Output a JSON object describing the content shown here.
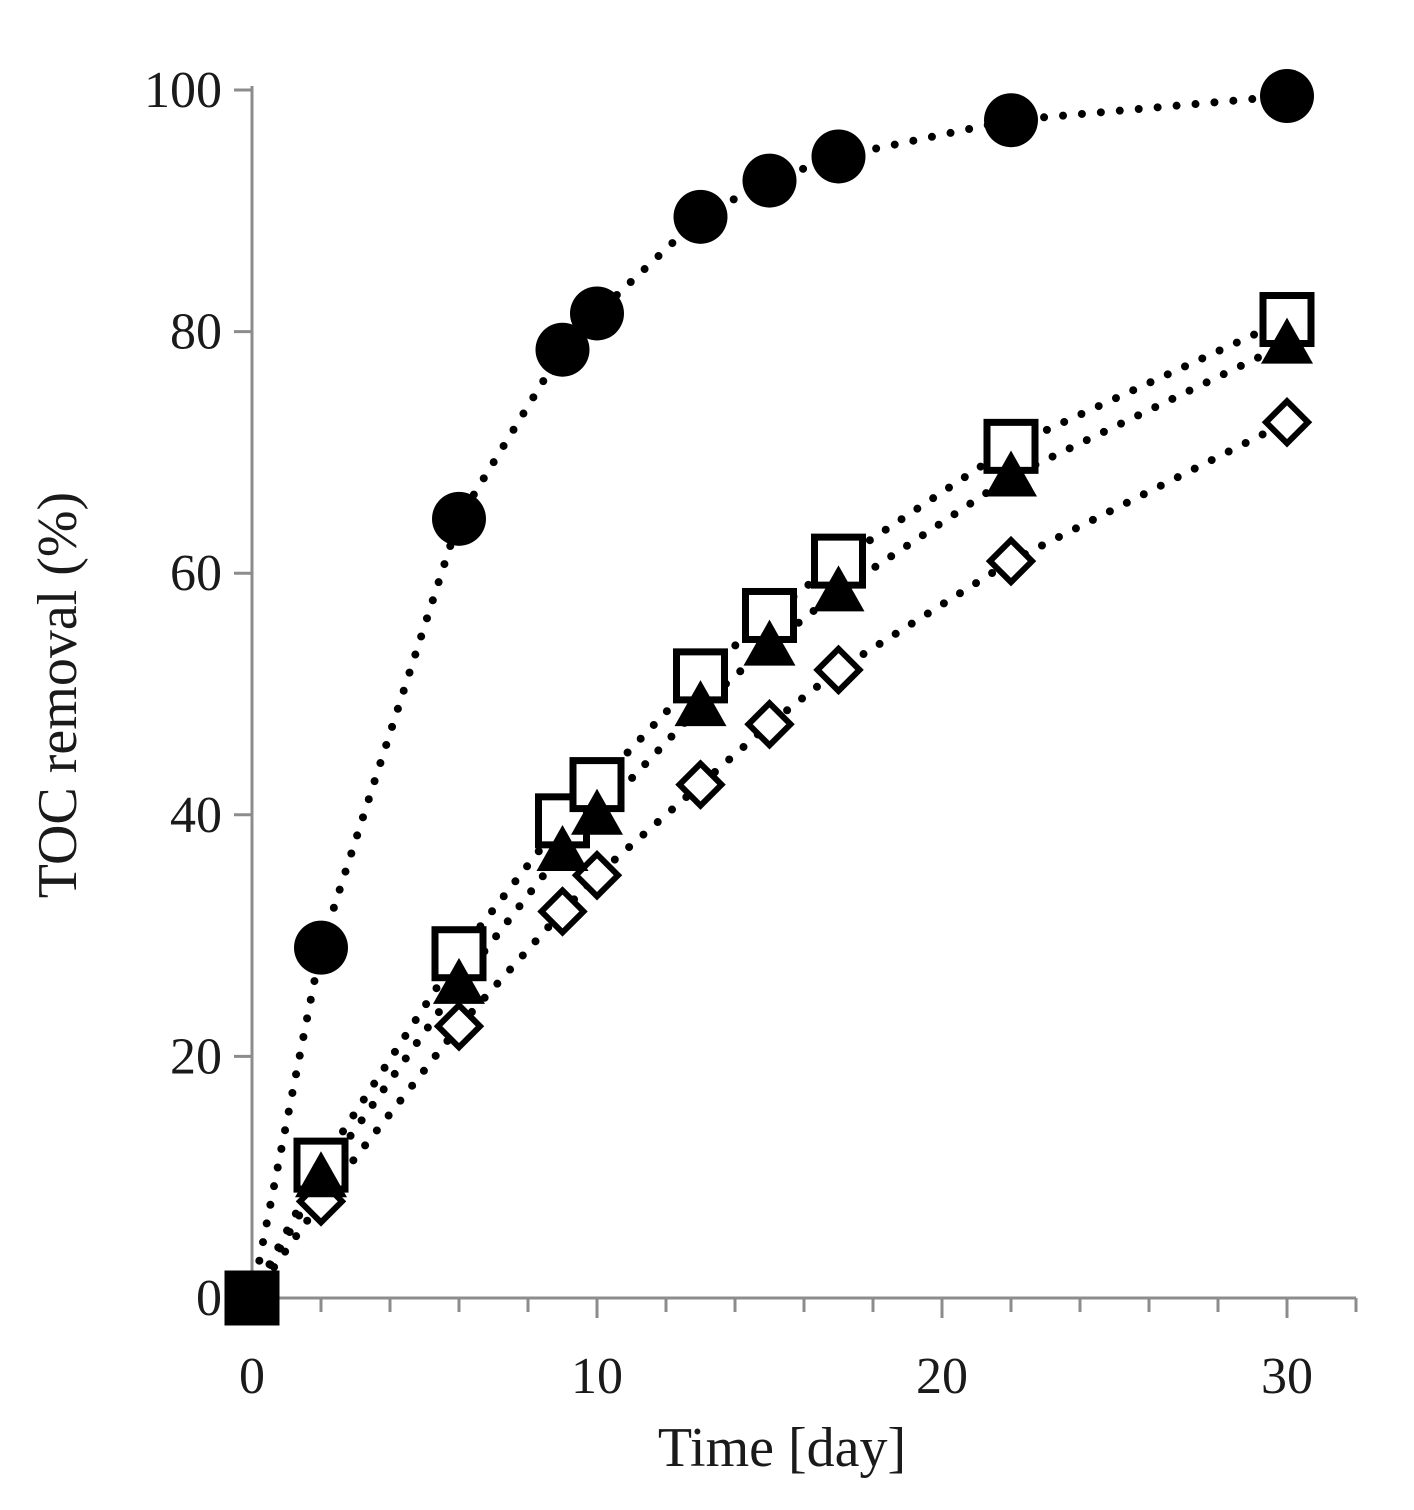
{
  "chart_data": {
    "type": "scatter",
    "title": "",
    "xlabel": "Time [day]",
    "ylabel": "TOC removal (%)",
    "xlim": [
      0,
      32
    ],
    "ylim": [
      0,
      100
    ],
    "x_major_ticks": [
      0,
      10,
      20,
      30
    ],
    "x_major_tick_labels": [
      "0",
      "10",
      "20",
      "30"
    ],
    "x_minor_step": 2,
    "y_ticks": [
      0,
      20,
      40,
      60,
      80,
      100
    ],
    "y_tick_labels": [
      "0",
      "20",
      "40",
      "60",
      "80",
      "100"
    ],
    "grid": false,
    "line_style": "dotted",
    "colors": {
      "axis": "#8c8c8c",
      "marker": "#000000",
      "text": "#1a1a1a"
    },
    "series": [
      {
        "name": "filled-circle",
        "marker": "circle-filled",
        "x": [
          0,
          2,
          6,
          9,
          10,
          13,
          15,
          17,
          22,
          30
        ],
        "y": [
          0,
          29,
          64.5,
          78.5,
          81.5,
          89.5,
          92.5,
          94.5,
          97.5,
          99.5
        ]
      },
      {
        "name": "open-square",
        "marker": "square-open",
        "x": [
          0,
          2,
          6,
          9,
          10,
          13,
          15,
          17,
          22,
          30
        ],
        "y": [
          0,
          11,
          28.5,
          39.5,
          42.5,
          51.5,
          56.5,
          61,
          70.5,
          81
        ]
      },
      {
        "name": "filled-triangle",
        "marker": "triangle-filled",
        "x": [
          0,
          2,
          6,
          9,
          10,
          13,
          15,
          17,
          22,
          30
        ],
        "y": [
          0,
          10,
          26,
          37,
          40,
          49,
          54,
          58.5,
          68,
          79
        ]
      },
      {
        "name": "open-diamond",
        "marker": "diamond-open",
        "x": [
          0,
          2,
          6,
          9,
          10,
          13,
          15,
          17,
          22,
          30
        ],
        "y": [
          0,
          8,
          22.5,
          32,
          35,
          42.5,
          47.5,
          52,
          61,
          72.5
        ]
      }
    ]
  }
}
